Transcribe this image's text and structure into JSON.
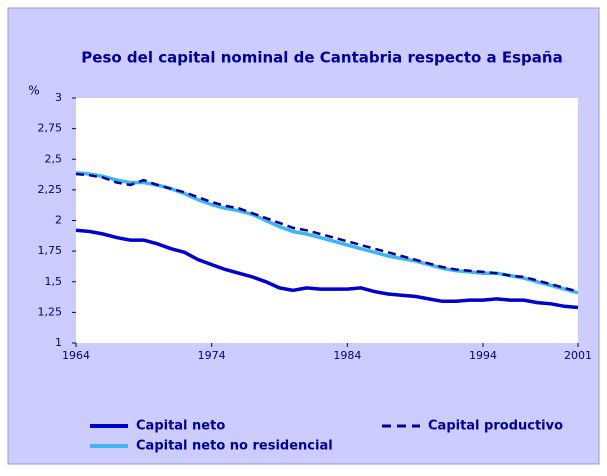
{
  "chart_data": {
    "type": "line",
    "title": "Peso del capital nominal de Cantabria respecto a España",
    "y_label": "%",
    "x": [
      1964,
      1965,
      1966,
      1967,
      1968,
      1969,
      1970,
      1971,
      1972,
      1973,
      1974,
      1975,
      1976,
      1977,
      1978,
      1979,
      1980,
      1981,
      1982,
      1983,
      1984,
      1985,
      1986,
      1987,
      1988,
      1989,
      1990,
      1991,
      1992,
      1993,
      1994,
      1995,
      1996,
      1997,
      1998,
      1999,
      2000,
      2001
    ],
    "xlim": [
      1964,
      2001
    ],
    "xticks": [
      1964,
      1974,
      1984,
      1994,
      2001
    ],
    "ylim": [
      1,
      3
    ],
    "yticks": [
      1,
      {
        "value": 1.25,
        "label": "1,25"
      },
      {
        "value": 1.5,
        "label": "1,5"
      },
      {
        "value": 1.75,
        "label": "1,75"
      },
      2,
      {
        "value": 2.25,
        "label": "2,25"
      },
      {
        "value": 2.5,
        "label": "2,5"
      },
      {
        "value": 2.75,
        "label": "2,75"
      },
      3
    ],
    "series": [
      {
        "name": "Capital neto",
        "color": "#0000cc",
        "style": "solid",
        "values": [
          1.92,
          1.91,
          1.89,
          1.86,
          1.84,
          1.84,
          1.81,
          1.77,
          1.74,
          1.68,
          1.64,
          1.6,
          1.57,
          1.54,
          1.5,
          1.45,
          1.43,
          1.45,
          1.44,
          1.44,
          1.44,
          1.45,
          1.42,
          1.4,
          1.39,
          1.38,
          1.36,
          1.34,
          1.34,
          1.35,
          1.35,
          1.36,
          1.35,
          1.35,
          1.33,
          1.32,
          1.3,
          1.29
        ]
      },
      {
        "name": "Capital productivo",
        "color": "#000099",
        "style": "dashed",
        "values": [
          2.38,
          2.37,
          2.35,
          2.31,
          2.29,
          2.33,
          2.29,
          2.26,
          2.23,
          2.19,
          2.15,
          2.12,
          2.1,
          2.06,
          2.02,
          1.98,
          1.94,
          1.92,
          1.89,
          1.86,
          1.83,
          1.8,
          1.77,
          1.74,
          1.71,
          1.68,
          1.65,
          1.62,
          1.6,
          1.59,
          1.58,
          1.57,
          1.55,
          1.54,
          1.51,
          1.48,
          1.45,
          1.42
        ]
      },
      {
        "name": "Capital neto no residencial",
        "color": "#3fb4f0",
        "style": "solid",
        "values": [
          2.39,
          2.38,
          2.36,
          2.33,
          2.31,
          2.31,
          2.29,
          2.26,
          2.22,
          2.17,
          2.13,
          2.1,
          2.08,
          2.05,
          2.0,
          1.95,
          1.91,
          1.89,
          1.86,
          1.83,
          1.8,
          1.77,
          1.74,
          1.71,
          1.69,
          1.67,
          1.64,
          1.61,
          1.59,
          1.58,
          1.57,
          1.57,
          1.55,
          1.53,
          1.5,
          1.47,
          1.44,
          1.41
        ]
      }
    ]
  }
}
